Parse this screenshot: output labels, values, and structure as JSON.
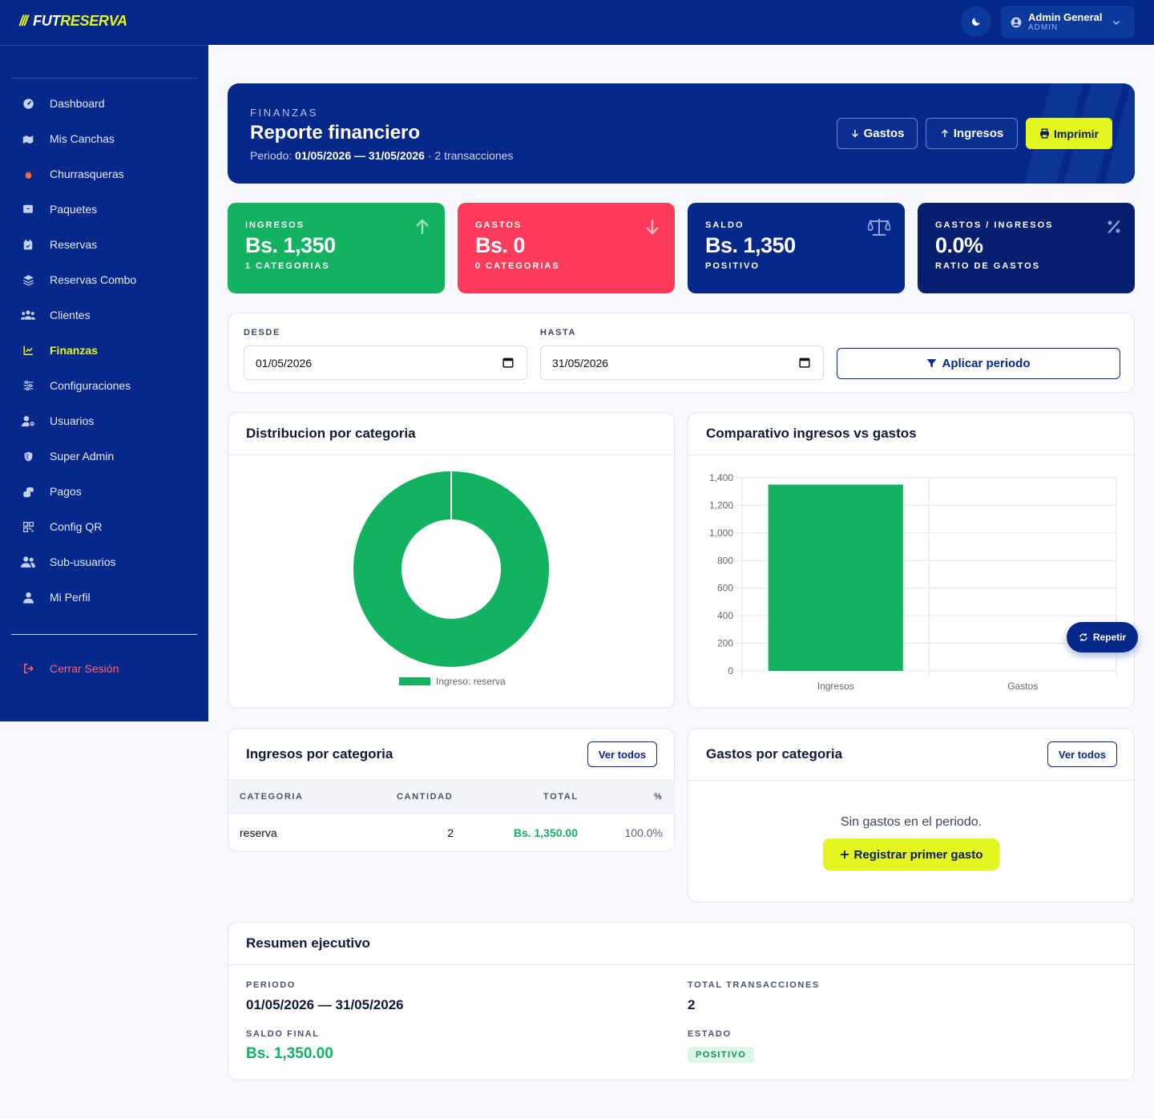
{
  "brand": {
    "slashes": "///",
    "part1": "FUT",
    "part2": "RESERVA"
  },
  "topbar": {
    "user_name": "Admin General",
    "user_role": "ADMIN",
    "theme_icon": "moon-icon"
  },
  "sidebar": {
    "items": [
      {
        "label": "Dashboard",
        "icon": "dashboard-icon"
      },
      {
        "label": "Mis Canchas",
        "icon": "map-icon"
      },
      {
        "label": "Churrasqueras",
        "icon": "fire-icon"
      },
      {
        "label": "Paquetes",
        "icon": "box-icon"
      },
      {
        "label": "Reservas",
        "icon": "calendar-icon"
      },
      {
        "label": "Reservas Combo",
        "icon": "layers-icon"
      },
      {
        "label": "Clientes",
        "icon": "users-icon"
      },
      {
        "label": "Finanzas",
        "icon": "chart-line-icon"
      },
      {
        "label": "Configuraciones",
        "icon": "sliders-icon"
      },
      {
        "label": "Usuarios",
        "icon": "user-gear-icon"
      },
      {
        "label": "Super Admin",
        "icon": "shield-icon"
      },
      {
        "label": "Pagos",
        "icon": "coins-icon"
      },
      {
        "label": "Config QR",
        "icon": "qrcode-icon"
      },
      {
        "label": "Sub-usuarios",
        "icon": "user-group-icon"
      },
      {
        "label": "Mi Perfil",
        "icon": "user-icon"
      }
    ],
    "active": "Finanzas",
    "logout_label": "Cerrar Sesión"
  },
  "hero": {
    "eyebrow": "FINANZAS",
    "title": "Reporte financiero",
    "period_prefix": "Periodo: ",
    "period_range": "01/05/2026 — 31/05/2026",
    "period_suffix": " · 2 transacciones",
    "btn_gastos": "Gastos",
    "btn_ingresos": "Ingresos",
    "btn_imprimir": "Imprimir"
  },
  "kpis": [
    {
      "label": "INGRESOS",
      "value": "Bs. 1,350",
      "sub": "1 CATEGORIAS",
      "color": "#13b261",
      "icon": "arrow-up-icon"
    },
    {
      "label": "GASTOS",
      "value": "Bs. 0",
      "sub": "0 CATEGORIAS",
      "color": "#ff3b5c",
      "icon": "arrow-down-icon"
    },
    {
      "label": "SALDO",
      "value": "Bs. 1,350",
      "sub": "POSITIVO",
      "color": "#05288a",
      "icon": "scale-icon"
    },
    {
      "label": "GASTOS / INGRESOS",
      "value": "0.0%",
      "sub": "RATIO DE GASTOS",
      "color": "#061f6e",
      "icon": "percent-icon"
    }
  ],
  "filter": {
    "desde_label": "DESDE",
    "desde_value": "01/05/2026",
    "hasta_label": "HASTA",
    "hasta_value": "31/05/2026",
    "apply_label": "Aplicar periodo"
  },
  "donut_card": {
    "title": "Distribucion por categoria"
  },
  "bar_card": {
    "title": "Comparativo ingresos vs gastos",
    "repeat_label": "Repetir"
  },
  "chart_data": [
    {
      "type": "pie",
      "title": "Distribucion por categoria",
      "categories": [
        "Ingreso: reserva"
      ],
      "values": [
        1350
      ],
      "colors": [
        "#13b261"
      ],
      "legend": "bottom"
    },
    {
      "type": "bar",
      "title": "Comparativo ingresos vs gastos",
      "categories": [
        "Ingresos",
        "Gastos"
      ],
      "values": [
        1350,
        0
      ],
      "colors": [
        "#13b261",
        "#ff3b5c"
      ],
      "ylim": [
        0,
        1400
      ],
      "yticks": [
        0,
        200,
        400,
        600,
        800,
        "1,000",
        "1,200",
        "1,400"
      ],
      "grid": true
    }
  ],
  "ingresos_cat": {
    "title": "Ingresos por categoria",
    "ver_todos": "Ver todos",
    "columns": [
      "CATEGORIA",
      "CANTIDAD",
      "TOTAL",
      "%"
    ],
    "rows": [
      {
        "categoria": "reserva",
        "cantidad": "2",
        "total": "Bs. 1,350.00",
        "pct": "100.0%"
      }
    ]
  },
  "gastos_cat": {
    "title": "Gastos por categoria",
    "ver_todos": "Ver todos",
    "empty": "Sin gastos en el periodo.",
    "cta": "Registrar primer gasto"
  },
  "resumen": {
    "title": "Resumen ejecutivo",
    "periodo_label": "PERIODO",
    "periodo_value": "01/05/2026 — 31/05/2026",
    "total_label": "TOTAL TRANSACCIONES",
    "total_value": "2",
    "saldo_label": "SALDO FINAL",
    "saldo_value": "Bs. 1,350.00",
    "estado_label": "ESTADO",
    "estado_value": "POSITIVO"
  }
}
